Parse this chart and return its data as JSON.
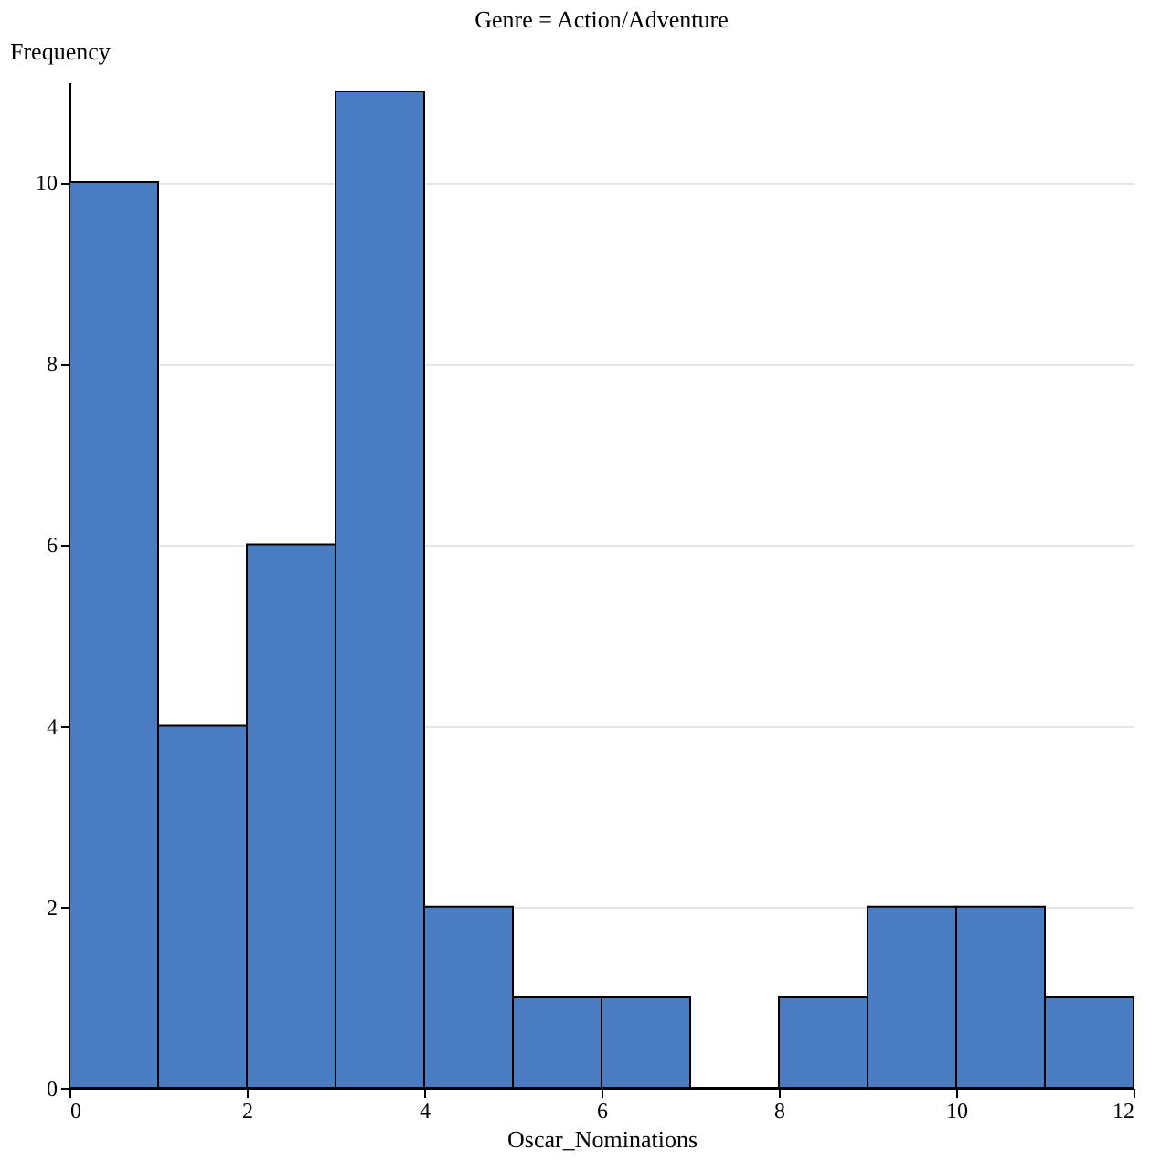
{
  "chart_data": {
    "type": "histogram",
    "title": "Genre = Action/Adventure",
    "xlabel": "Oscar_Nominations",
    "ylabel": "Frequency",
    "bins": [
      0,
      1,
      2,
      3,
      4,
      5,
      6,
      7,
      8,
      9,
      10,
      11,
      12
    ],
    "values": [
      10,
      4,
      6,
      11,
      2,
      1,
      1,
      0,
      1,
      2,
      2,
      1
    ],
    "color": "#4a7cc3",
    "xlim": [
      0,
      12
    ],
    "xticks": [
      0,
      2,
      4,
      6,
      8,
      10,
      12
    ],
    "ylim": [
      0,
      11.1
    ],
    "yticks": [
      0,
      2,
      4,
      6,
      8,
      10
    ],
    "grid": "y"
  }
}
